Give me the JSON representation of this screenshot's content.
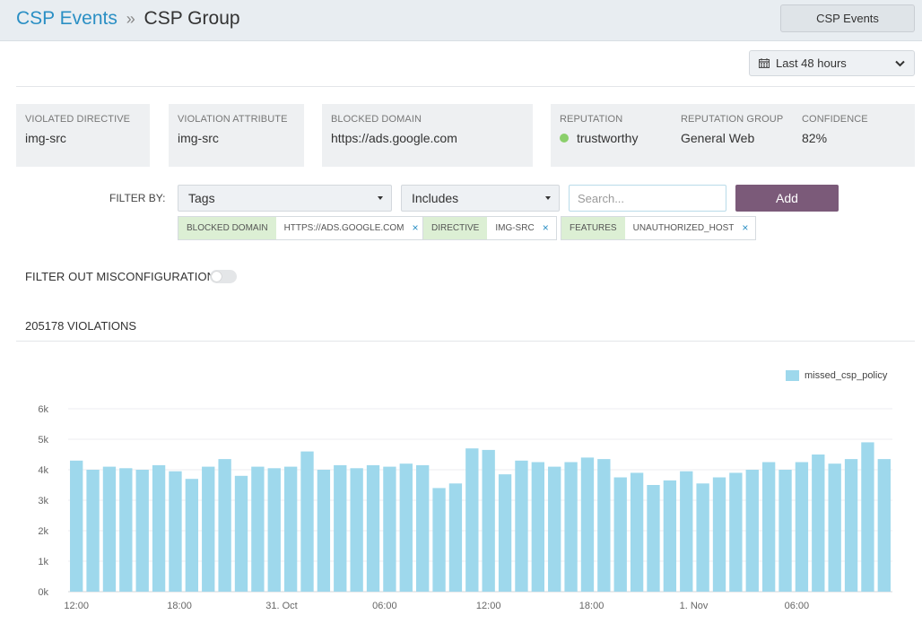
{
  "header": {
    "breadcrumb_root": "CSP Events",
    "breadcrumb_sep": "»",
    "breadcrumb_current": "CSP Group",
    "button_label": "CSP Events"
  },
  "range": {
    "label": "Last 48 hours"
  },
  "cards": {
    "violated_directive": {
      "label": "VIOLATED DIRECTIVE",
      "value": "img-src"
    },
    "violation_attribute": {
      "label": "VIOLATION ATTRIBUTE",
      "value": "img-src"
    },
    "blocked_domain": {
      "label": "BLOCKED DOMAIN",
      "value": "https://ads.google.com"
    },
    "reputation": {
      "label": "REPUTATION",
      "value": "trustworthy"
    },
    "reputation_group": {
      "label": "REPUTATION GROUP",
      "value": "General Web"
    },
    "confidence": {
      "label": "CONFIDENCE",
      "value": "82%"
    }
  },
  "filter": {
    "label": "FILTER BY:",
    "field_select": "Tags",
    "operator_select": "Includes",
    "search_placeholder": "Search...",
    "add_label": "Add",
    "chips": [
      {
        "key": "BLOCKED DOMAIN",
        "value": "HTTPS://ADS.GOOGLE.COM",
        "remove": "×"
      },
      {
        "key": "DIRECTIVE",
        "value": "IMG-SRC",
        "remove": "×"
      },
      {
        "key": "FEATURES",
        "value": "UNAUTHORIZED_HOST",
        "remove": "×"
      }
    ]
  },
  "misconfig": {
    "label": "FILTER OUT MISCONFIGURATIONS",
    "enabled": false
  },
  "violations": {
    "label": "205178 VIOLATIONS"
  },
  "colors": {
    "accent": "#2a8fc4",
    "add_button": "#7b5a79",
    "bar": "#9ed8ec",
    "reputation_dot": "#8bcf6b"
  },
  "chart_data": {
    "type": "bar",
    "series": [
      {
        "name": "missed_csp_policy",
        "values": [
          4300,
          4000,
          4100,
          4050,
          4000,
          4150,
          3950,
          3700,
          4100,
          4350,
          3800,
          4100,
          4050,
          4100,
          4600,
          4000,
          4150,
          4050,
          4150,
          4100,
          4200,
          4150,
          3400,
          3550,
          4700,
          4650,
          3850,
          4300,
          4250,
          4100,
          4250,
          4400,
          4350,
          3750,
          3900,
          3500,
          3650,
          3950,
          3550,
          3750,
          3900,
          4000,
          4250,
          4000,
          4250,
          4500,
          4200,
          4350,
          4900,
          4350
        ]
      }
    ],
    "ylim": [
      0,
      6000
    ],
    "yticks": [
      "0k",
      "1k",
      "2k",
      "3k",
      "4k",
      "5k",
      "6k"
    ],
    "xticks": [
      {
        "label": "12:00",
        "index": 0
      },
      {
        "label": "18:00",
        "index": 6.25
      },
      {
        "label": "31. Oct",
        "index": 12.45
      },
      {
        "label": "06:00",
        "index": 18.7
      },
      {
        "label": "12:00",
        "index": 25
      },
      {
        "label": "18:00",
        "index": 31.25
      },
      {
        "label": "1. Nov",
        "index": 37.45
      },
      {
        "label": "06:00",
        "index": 43.7
      }
    ],
    "legend": "top-right",
    "grid": true,
    "title": "",
    "xlabel": "",
    "ylabel": ""
  }
}
